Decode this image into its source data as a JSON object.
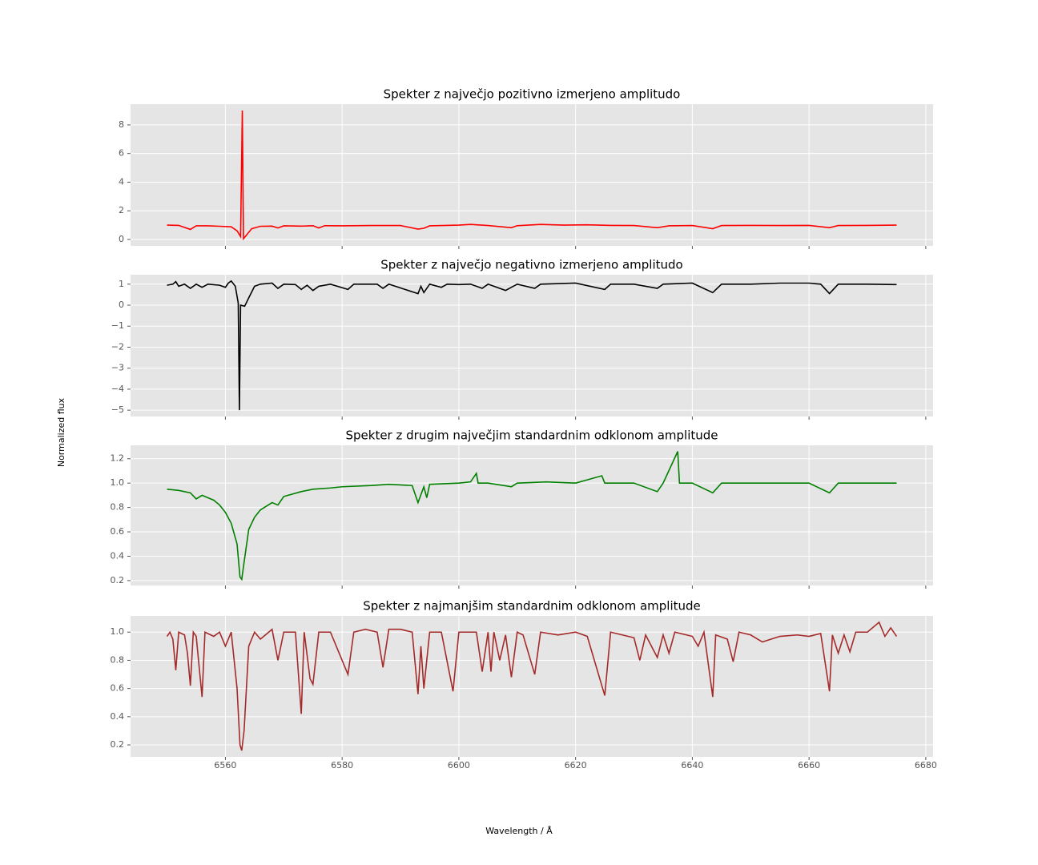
{
  "xlabel": "Wavelength / Å",
  "ylabel": "Normalized flux",
  "chart_data": [
    {
      "type": "line",
      "title": "Spekter z največjo pozitivno izmerjeno amplitudo",
      "color": "#ff0000",
      "grid": true,
      "x": [
        6550,
        6552,
        6554,
        6555,
        6557,
        6559,
        6561,
        6562,
        6562.6,
        6562.9,
        6563.1,
        6563.6,
        6564.5,
        6566,
        6568,
        6569,
        6570,
        6573,
        6575,
        6576,
        6577,
        6580,
        6585,
        6590,
        6593,
        6594,
        6595,
        6600,
        6602,
        6605,
        6609,
        6610,
        6614,
        6618,
        6622,
        6626,
        6630,
        6634,
        6636,
        6640,
        6643.5,
        6645,
        6650,
        6655,
        6660,
        6663.5,
        6665,
        6670,
        6675
      ],
      "values": [
        1.0,
        0.98,
        0.7,
        0.95,
        0.95,
        0.92,
        0.88,
        0.6,
        0.2,
        9.0,
        0.05,
        0.3,
        0.75,
        0.92,
        0.93,
        0.8,
        0.95,
        0.93,
        0.96,
        0.8,
        0.96,
        0.95,
        0.97,
        0.97,
        0.72,
        0.78,
        0.95,
        1.0,
        1.05,
        0.97,
        0.82,
        0.96,
        1.05,
        1.0,
        1.02,
        0.98,
        0.97,
        0.82,
        0.95,
        0.97,
        0.75,
        0.97,
        0.98,
        0.97,
        0.98,
        0.82,
        0.97,
        0.98,
        1.0
      ],
      "ylim": [
        -0.45,
        9.45
      ],
      "yticks": [
        0,
        2,
        4,
        6,
        8
      ]
    },
    {
      "type": "line",
      "title": "Spekter z največjo negativno izmerjeno amplitudo",
      "color": "#000000",
      "grid": true,
      "x": [
        6550,
        6551,
        6551.5,
        6552,
        6553,
        6554,
        6555,
        6556,
        6557,
        6559,
        6560,
        6560.5,
        6561,
        6561.7,
        6562.2,
        6562.4,
        6562.6,
        6563.3,
        6564,
        6565,
        6566,
        6568,
        6569,
        6570,
        6572,
        6573,
        6574,
        6575,
        6576,
        6578,
        6581,
        6582,
        6586,
        6587,
        6588,
        6593,
        6593.5,
        6594,
        6595,
        6597,
        6598,
        6600,
        6602,
        6604,
        6605,
        6608,
        6609,
        6610,
        6613,
        6614,
        6620,
        6625,
        6626,
        6630,
        6634,
        6635,
        6640,
        6643.5,
        6645,
        6650,
        6655,
        6660,
        6662,
        6663.5,
        6665,
        6670,
        6675
      ],
      "values": [
        0.95,
        1.0,
        1.12,
        0.9,
        1.0,
        0.8,
        1.0,
        0.85,
        1.0,
        0.95,
        0.85,
        1.05,
        1.15,
        0.9,
        0.1,
        -5.0,
        0.0,
        -0.05,
        0.35,
        0.9,
        1.0,
        1.05,
        0.8,
        1.0,
        0.98,
        0.75,
        0.95,
        0.7,
        0.9,
        1.0,
        0.75,
        1.0,
        1.0,
        0.8,
        1.0,
        0.55,
        0.9,
        0.6,
        1.0,
        0.85,
        1.0,
        0.98,
        1.0,
        0.8,
        1.0,
        0.7,
        0.85,
        1.0,
        0.8,
        1.0,
        1.05,
        0.75,
        1.0,
        1.0,
        0.8,
        1.0,
        1.05,
        0.6,
        1.0,
        1.0,
        1.05,
        1.05,
        1.0,
        0.55,
        1.0,
        1.0,
        0.98
      ],
      "ylim": [
        -5.3,
        1.45
      ],
      "yticks": [
        {
          "value": -5,
          "label": "−5"
        },
        {
          "value": -4,
          "label": "−4"
        },
        {
          "value": -3,
          "label": "−3"
        },
        {
          "value": -2,
          "label": "−2"
        },
        {
          "value": -1,
          "label": "−1"
        },
        0,
        1
      ]
    },
    {
      "type": "line",
      "title": "Spekter z drugim največjim standardnim odklonom amplitude",
      "color": "#008000",
      "grid": true,
      "x": [
        6550,
        6552,
        6554,
        6555,
        6556,
        6558,
        6559,
        6560,
        6561,
        6562,
        6562.5,
        6562.8,
        6563.2,
        6564,
        6565,
        6566,
        6568,
        6569,
        6570,
        6573,
        6575,
        6578,
        6580,
        6585,
        6588,
        6592,
        6593,
        6594,
        6594.5,
        6595,
        6600,
        6602,
        6603,
        6603.3,
        6605,
        6609,
        6610,
        6615,
        6620,
        6624.5,
        6625,
        6630,
        6634,
        6635,
        6637.5,
        6637.8,
        6640,
        6643.5,
        6645,
        6650,
        6655,
        6660,
        6663.5,
        6665,
        6670,
        6675
      ],
      "values": [
        0.95,
        0.94,
        0.92,
        0.87,
        0.9,
        0.86,
        0.82,
        0.76,
        0.67,
        0.5,
        0.23,
        0.21,
        0.35,
        0.62,
        0.72,
        0.78,
        0.84,
        0.82,
        0.89,
        0.93,
        0.95,
        0.96,
        0.97,
        0.98,
        0.99,
        0.98,
        0.84,
        0.97,
        0.88,
        0.99,
        1.0,
        1.01,
        1.08,
        1.0,
        1.0,
        0.97,
        1.0,
        1.01,
        1.0,
        1.06,
        1.0,
        1.0,
        0.93,
        1.0,
        1.26,
        1.0,
        1.0,
        0.92,
        1.0,
        1.0,
        1.0,
        1.0,
        0.92,
        1.0,
        1.0,
        1.0
      ],
      "ylim": [
        0.16,
        1.31
      ],
      "yticks": [
        0.2,
        0.4,
        0.6,
        0.8,
        {
          "value": 1.0,
          "label": "1.0"
        },
        1.2
      ]
    },
    {
      "type": "line",
      "title": "Spekter z najmanjšim standardnim odklonom amplitude",
      "color": "#a52a2a",
      "grid": true,
      "x": [
        6550,
        6550.5,
        6551,
        6551.5,
        6552,
        6553,
        6553.5,
        6554,
        6554.5,
        6555,
        6556,
        6556.5,
        6558,
        6559,
        6560,
        6561,
        6562,
        6562.5,
        6562.8,
        6563.2,
        6564,
        6565,
        6566,
        6568,
        6569,
        6570,
        6572,
        6573,
        6573.5,
        6574.5,
        6575,
        6576,
        6578,
        6581,
        6582,
        6584,
        6586,
        6587,
        6588,
        6590,
        6592,
        6593,
        6593.5,
        6594,
        6595,
        6597,
        6599,
        6600,
        6603,
        6604,
        6605,
        6605.5,
        6606,
        6607,
        6608,
        6609,
        6610,
        6611,
        6613,
        6614,
        6617,
        6620,
        6622,
        6625,
        6626,
        6628,
        6630,
        6631,
        6632,
        6634,
        6635,
        6636,
        6637,
        6640,
        6641,
        6642,
        6643.5,
        6644,
        6646,
        6647,
        6648,
        6650,
        6652,
        6655,
        6658,
        6660,
        6662,
        6663.5,
        6664,
        6665,
        6666,
        6667,
        6668,
        6670,
        6672,
        6673,
        6674,
        6675
      ],
      "values": [
        0.97,
        1.0,
        0.95,
        0.73,
        1.0,
        0.98,
        0.85,
        0.62,
        1.0,
        0.97,
        0.54,
        1.0,
        0.97,
        1.0,
        0.9,
        1.0,
        0.6,
        0.2,
        0.16,
        0.3,
        0.9,
        1.0,
        0.95,
        1.02,
        0.8,
        1.0,
        1.0,
        0.42,
        1.0,
        0.67,
        0.63,
        1.0,
        1.0,
        0.7,
        1.0,
        1.02,
        1.0,
        0.75,
        1.02,
        1.02,
        1.0,
        0.56,
        0.9,
        0.6,
        1.0,
        1.0,
        0.58,
        1.0,
        1.0,
        0.72,
        1.0,
        0.72,
        1.0,
        0.8,
        0.98,
        0.68,
        1.0,
        0.98,
        0.7,
        1.0,
        0.98,
        1.0,
        0.97,
        0.55,
        1.0,
        0.98,
        0.96,
        0.8,
        0.98,
        0.82,
        0.98,
        0.85,
        1.0,
        0.97,
        0.9,
        1.0,
        0.54,
        0.98,
        0.95,
        0.79,
        1.0,
        0.98,
        0.93,
        0.97,
        0.98,
        0.97,
        0.99,
        0.58,
        0.98,
        0.85,
        0.98,
        0.86,
        1.0,
        1.0,
        1.07,
        0.97,
        1.03,
        0.97
      ],
      "ylim": [
        0.115,
        1.115
      ],
      "yticks": [
        0.2,
        0.4,
        0.6,
        0.8,
        {
          "value": 1.0,
          "label": "1.0"
        }
      ],
      "xlim": [
        6543.75,
        6681.25
      ],
      "xticks": [
        6560,
        6580,
        6600,
        6620,
        6640,
        6660,
        6680
      ]
    }
  ]
}
